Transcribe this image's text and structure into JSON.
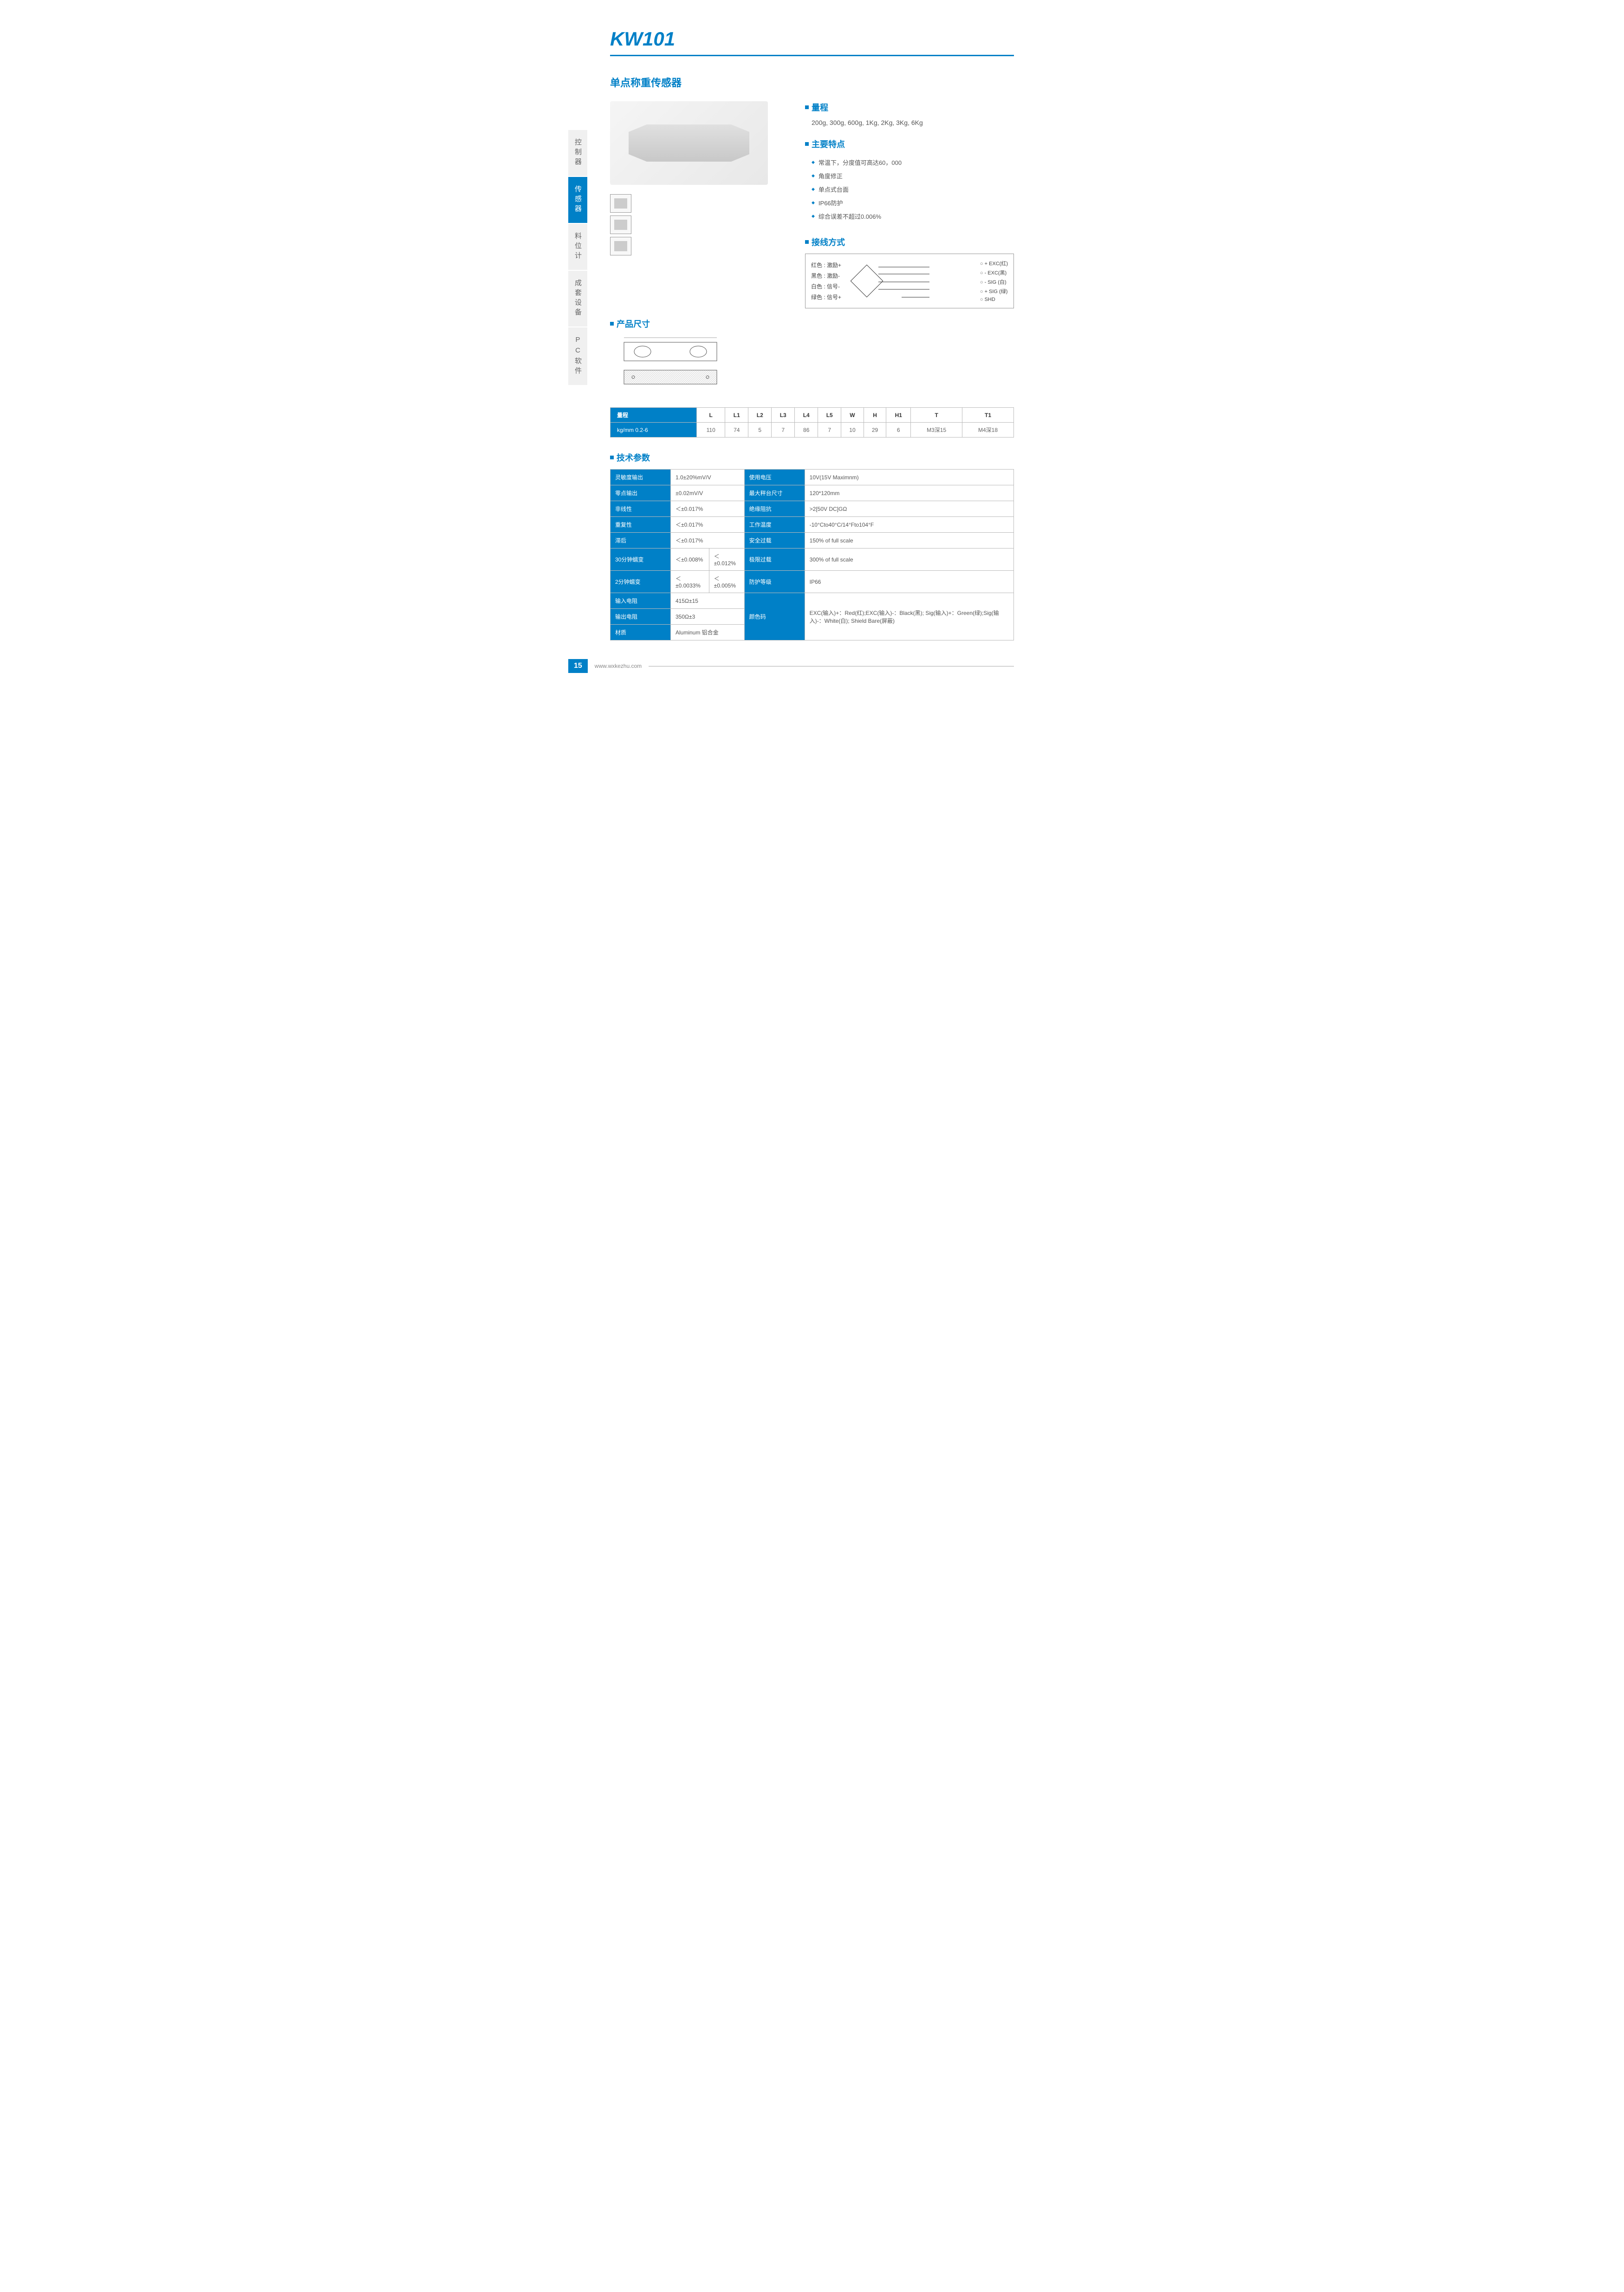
{
  "page": {
    "title": "KW101",
    "subtitle": "单点称重传感器",
    "number": "15",
    "url": "www.wxkezhu.com"
  },
  "sidebar": {
    "items": [
      {
        "label": "控制器",
        "active": false
      },
      {
        "label": "传感器",
        "active": true
      },
      {
        "label": "料位计",
        "active": false
      },
      {
        "label": "成套设备",
        "active": false
      },
      {
        "label": "PC软件",
        "active": false
      }
    ]
  },
  "range": {
    "heading": "量程",
    "text": "200g, 300g, 600g, 1Kg, 2Kg, 3Kg, 6Kg"
  },
  "features": {
    "heading": "主要特点",
    "items": [
      "常温下，分度值可高达60，000",
      "角度修正",
      "单点式台面",
      "IP66防护",
      "综合误差不超过0.006%"
    ]
  },
  "wiring": {
    "heading": "接线方式",
    "labels": [
      "红色 : 激励+",
      "黑色 : 激励-",
      "白色 : 信号-",
      "绿色 : 信号+"
    ],
    "outputs": [
      "+ EXC(红)",
      "- EXC(黑)",
      "- SIG (白)",
      "+ SIG (绿)",
      "SHD"
    ]
  },
  "dimensions": {
    "heading": "产品尺寸",
    "headers": [
      "量程",
      "L",
      "L1",
      "L2",
      "L3",
      "L4",
      "L5",
      "W",
      "H",
      "H1",
      "T",
      "T1"
    ],
    "row_label": "kg/mm 0.2-6",
    "values": [
      "110",
      "74",
      "5",
      "7",
      "86",
      "7",
      "10",
      "29",
      "6",
      "M3深15",
      "M4深18"
    ]
  },
  "specs": {
    "heading": "技术参数",
    "rows": [
      {
        "l1": "灵敏度输出",
        "v1": "1.0±20%mV/V",
        "l2": "使用电压",
        "v2": "10V(15V Maximnm)"
      },
      {
        "l1": "零点输出",
        "v1": "±0.02mV/V",
        "l2": "最大秤台尺寸",
        "v2": "120*120mm"
      },
      {
        "l1": "非线性",
        "v1": "＜±0.017%",
        "l2": "绝缘阻抗",
        "v2": ">2[50V DC]GΩ"
      },
      {
        "l1": "重复性",
        "v1": "＜±0.017%",
        "l2": "工作温度",
        "v2": "-10°Cto40°C/14°Fto104°F"
      },
      {
        "l1": "滞后",
        "v1": "＜±0.017%",
        "l2": "安全过载",
        "v2": "150% of full scale"
      },
      {
        "l1": "30分钟蠕变",
        "v1": "＜±0.008%",
        "v1b": "＜±0.012%",
        "l2": "极限过载",
        "v2": "300% of full scale"
      },
      {
        "l1": "2分钟蠕变",
        "v1": "＜±0.0033%",
        "v1b": "＜±0.005%",
        "l2": "防护等级",
        "v2": "IP66"
      },
      {
        "l1": "输入电阻",
        "v1": "415Ω±15",
        "l2": "颜色码",
        "v2": "EXC(输入)+：Red(红);EXC(输入)-：Black(黑); Sig(输入)+：Green(绿);Sig(输入)-：White(白); Shield Bare(屏蔽)",
        "merge": 3
      },
      {
        "l1": "输出电阻",
        "v1": "350Ω±3"
      },
      {
        "l1": "材质",
        "v1": "Aluminum 铝合金"
      }
    ]
  },
  "colors": {
    "primary": "#0080c7",
    "border": "#bbb",
    "text": "#555"
  }
}
